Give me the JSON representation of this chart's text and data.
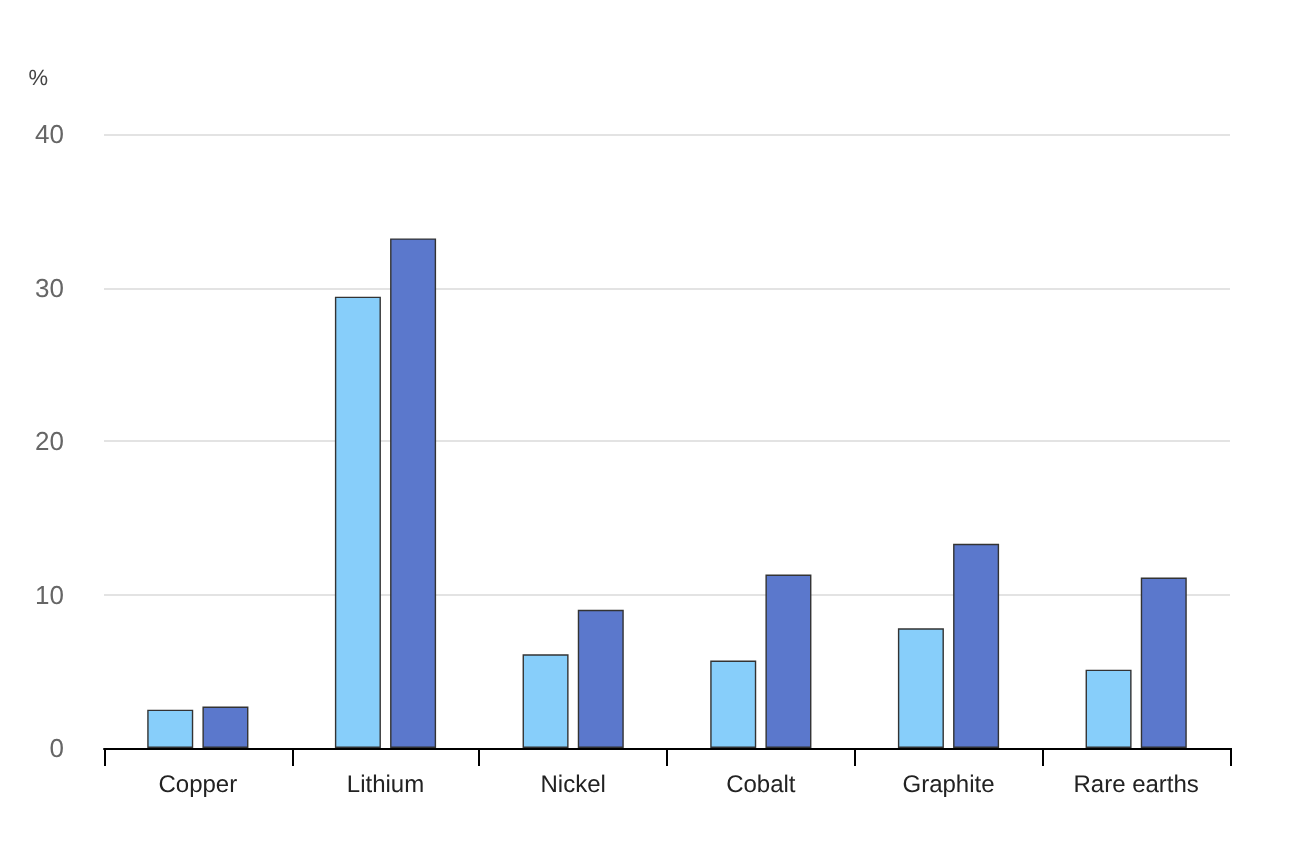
{
  "chart_data": {
    "type": "bar",
    "ylabel": "%",
    "categories": [
      "Copper",
      "Lithium",
      "Nickel",
      "Cobalt",
      "Graphite",
      "Rare earths"
    ],
    "series": [
      {
        "color": "#87cefa",
        "values": [
          2.5,
          29.4,
          6.1,
          5.7,
          7.8,
          5.1
        ]
      },
      {
        "color": "#5b78cc",
        "values": [
          2.7,
          33.2,
          9.0,
          11.3,
          13.3,
          11.1
        ]
      }
    ],
    "ylim": [
      0,
      40
    ],
    "yticks": [
      0,
      10,
      20,
      30,
      40
    ],
    "grid": "y"
  }
}
